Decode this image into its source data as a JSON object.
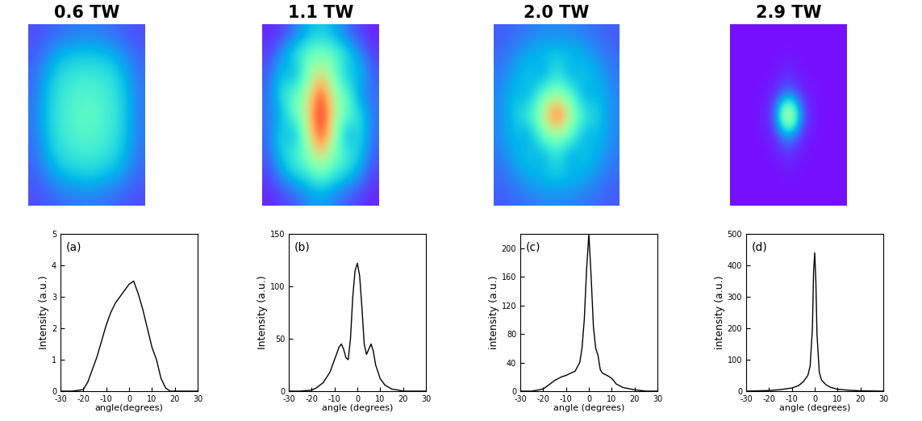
{
  "chart_data": [
    {
      "type": "heatmap",
      "title": "0.6 TW",
      "tick_labels": false,
      "value_range": [
        0,
        1
      ],
      "cells": [
        [
          0.1,
          0.12,
          0.14,
          0.16,
          0.17,
          0.16,
          0.14,
          0.12,
          0.1
        ],
        [
          0.12,
          0.18,
          0.25,
          0.28,
          0.29,
          0.28,
          0.25,
          0.18,
          0.13
        ],
        [
          0.14,
          0.25,
          0.33,
          0.36,
          0.37,
          0.36,
          0.33,
          0.25,
          0.15
        ],
        [
          0.15,
          0.28,
          0.36,
          0.4,
          0.42,
          0.4,
          0.36,
          0.28,
          0.16
        ],
        [
          0.16,
          0.29,
          0.37,
          0.42,
          0.44,
          0.42,
          0.37,
          0.29,
          0.16
        ],
        [
          0.15,
          0.28,
          0.36,
          0.4,
          0.42,
          0.4,
          0.36,
          0.28,
          0.16
        ],
        [
          0.14,
          0.25,
          0.33,
          0.36,
          0.38,
          0.36,
          0.33,
          0.25,
          0.15
        ],
        [
          0.12,
          0.18,
          0.25,
          0.28,
          0.3,
          0.28,
          0.25,
          0.19,
          0.13
        ],
        [
          0.1,
          0.12,
          0.14,
          0.16,
          0.17,
          0.16,
          0.14,
          0.12,
          0.1
        ]
      ]
    },
    {
      "type": "heatmap",
      "title": "1.1 TW",
      "tick_labels": false,
      "value_range": [
        0,
        1
      ],
      "cells": [
        [
          0.05,
          0.08,
          0.15,
          0.25,
          0.3,
          0.25,
          0.15,
          0.08,
          0.05
        ],
        [
          0.08,
          0.2,
          0.35,
          0.45,
          0.5,
          0.45,
          0.35,
          0.2,
          0.08
        ],
        [
          0.12,
          0.3,
          0.2,
          0.5,
          0.7,
          0.5,
          0.25,
          0.3,
          0.12
        ],
        [
          0.14,
          0.35,
          0.45,
          0.6,
          0.95,
          0.6,
          0.45,
          0.2,
          0.14
        ],
        [
          0.15,
          0.25,
          0.45,
          0.65,
          1.0,
          0.65,
          0.45,
          0.35,
          0.15
        ],
        [
          0.14,
          0.35,
          0.2,
          0.6,
          0.95,
          0.6,
          0.2,
          0.35,
          0.14
        ],
        [
          0.12,
          0.3,
          0.4,
          0.5,
          0.7,
          0.5,
          0.4,
          0.3,
          0.12
        ],
        [
          0.08,
          0.2,
          0.3,
          0.35,
          0.45,
          0.35,
          0.3,
          0.2,
          0.08
        ],
        [
          0.05,
          0.08,
          0.12,
          0.18,
          0.22,
          0.18,
          0.12,
          0.08,
          0.05
        ]
      ]
    },
    {
      "type": "heatmap",
      "title": "2.0 TW",
      "tick_labels": false,
      "value_range": [
        0,
        1
      ],
      "cells": [
        [
          0.12,
          0.14,
          0.16,
          0.18,
          0.18,
          0.18,
          0.16,
          0.14,
          0.12
        ],
        [
          0.14,
          0.18,
          0.24,
          0.28,
          0.3,
          0.28,
          0.24,
          0.18,
          0.14
        ],
        [
          0.16,
          0.24,
          0.3,
          0.2,
          0.36,
          0.22,
          0.3,
          0.24,
          0.16
        ],
        [
          0.18,
          0.28,
          0.22,
          0.45,
          0.55,
          0.45,
          0.2,
          0.28,
          0.18
        ],
        [
          0.18,
          0.3,
          0.38,
          0.6,
          1.0,
          0.6,
          0.38,
          0.3,
          0.18
        ],
        [
          0.18,
          0.28,
          0.2,
          0.45,
          0.55,
          0.45,
          0.22,
          0.28,
          0.18
        ],
        [
          0.16,
          0.24,
          0.3,
          0.22,
          0.36,
          0.2,
          0.3,
          0.24,
          0.16
        ],
        [
          0.14,
          0.18,
          0.24,
          0.28,
          0.3,
          0.28,
          0.24,
          0.18,
          0.14
        ],
        [
          0.12,
          0.14,
          0.16,
          0.18,
          0.18,
          0.18,
          0.16,
          0.14,
          0.12
        ]
      ]
    },
    {
      "type": "heatmap",
      "title": "2.9 TW",
      "tick_labels": false,
      "value_range": [
        0,
        1
      ],
      "cells": [
        [
          0.02,
          0.02,
          0.02,
          0.02,
          0.02,
          0.02,
          0.02,
          0.02,
          0.02
        ],
        [
          0.02,
          0.02,
          0.02,
          0.02,
          0.03,
          0.02,
          0.02,
          0.02,
          0.02
        ],
        [
          0.02,
          0.02,
          0.02,
          0.03,
          0.06,
          0.03,
          0.02,
          0.02,
          0.02
        ],
        [
          0.02,
          0.02,
          0.03,
          0.05,
          0.15,
          0.05,
          0.03,
          0.02,
          0.02
        ],
        [
          0.02,
          0.02,
          0.03,
          0.1,
          1.0,
          0.12,
          0.03,
          0.02,
          0.02
        ],
        [
          0.02,
          0.02,
          0.03,
          0.05,
          0.2,
          0.05,
          0.03,
          0.02,
          0.02
        ],
        [
          0.02,
          0.02,
          0.02,
          0.03,
          0.06,
          0.03,
          0.02,
          0.02,
          0.02
        ],
        [
          0.02,
          0.02,
          0.02,
          0.02,
          0.03,
          0.02,
          0.02,
          0.02,
          0.02
        ],
        [
          0.02,
          0.02,
          0.02,
          0.02,
          0.02,
          0.02,
          0.02,
          0.02,
          0.02
        ]
      ]
    },
    {
      "type": "line",
      "annotations": [
        "(a)"
      ],
      "x_label": "angle(degrees)",
      "y_label": "Intensity (a.u.)",
      "color": "#000000",
      "xlim": [
        -30,
        30
      ],
      "xticks": [
        -30,
        -20,
        -10,
        0,
        10,
        20,
        30
      ],
      "ylim": [
        0,
        5
      ],
      "yticks": [
        0,
        1,
        2,
        3,
        4,
        5
      ],
      "x": [
        -30,
        -25,
        -20,
        -18,
        -16,
        -14,
        -12,
        -10,
        -8,
        -6,
        -4,
        -2,
        0,
        2,
        4,
        6,
        8,
        10,
        12,
        14,
        16,
        18,
        20,
        25,
        30
      ],
      "values": [
        0,
        0,
        0.05,
        0.3,
        0.7,
        1.1,
        1.6,
        2.1,
        2.5,
        2.8,
        3.0,
        3.2,
        3.4,
        3.5,
        3.1,
        2.6,
        2.0,
        1.4,
        1.0,
        0.4,
        0.1,
        0,
        0,
        0,
        0
      ]
    },
    {
      "type": "line",
      "annotations": [
        "(b)"
      ],
      "x_label": "angle (degrees)",
      "y_label": "Intensity (a.u.)",
      "color": "#000000",
      "xlim": [
        -30,
        30
      ],
      "xticks": [
        -30,
        -20,
        -10,
        0,
        10,
        20,
        30
      ],
      "ylim": [
        0,
        150
      ],
      "yticks": [
        0,
        50,
        100,
        150
      ],
      "x": [
        -30,
        -25,
        -20,
        -18,
        -15,
        -12,
        -10,
        -8,
        -7,
        -6,
        -5,
        -4,
        -3,
        -2,
        -1,
        0,
        1,
        2,
        3,
        4,
        5,
        6,
        7,
        8,
        10,
        12,
        15,
        18,
        20,
        25,
        30
      ],
      "values": [
        0,
        0,
        1,
        3,
        8,
        18,
        30,
        42,
        45,
        40,
        32,
        30,
        50,
        90,
        115,
        122,
        110,
        80,
        45,
        35,
        40,
        45,
        38,
        25,
        12,
        6,
        2,
        1,
        0,
        0,
        0
      ]
    },
    {
      "type": "line",
      "annotations": [
        "(c)"
      ],
      "x_label": "angle (degrees)",
      "y_label": "intensity (a.u.)",
      "color": "#000000",
      "xlim": [
        -30,
        30
      ],
      "xticks": [
        -30,
        -20,
        -10,
        0,
        10,
        20,
        30
      ],
      "ylim": [
        0,
        220
      ],
      "yticks": [
        0,
        40,
        80,
        120,
        160,
        200
      ],
      "x": [
        -30,
        -25,
        -20,
        -17,
        -15,
        -12,
        -10,
        -8,
        -6,
        -4,
        -3,
        -2,
        -1,
        0,
        1,
        2,
        3,
        4,
        5,
        6,
        8,
        10,
        12,
        15,
        20,
        25,
        30
      ],
      "values": [
        0,
        0,
        3,
        10,
        15,
        20,
        22,
        25,
        28,
        40,
        60,
        100,
        170,
        220,
        160,
        90,
        60,
        50,
        30,
        25,
        22,
        18,
        10,
        5,
        2,
        0,
        0
      ]
    },
    {
      "type": "line",
      "annotations": [
        "(d)"
      ],
      "x_label": "angle (degrees)",
      "y_label": "intensity (a.u.)",
      "color": "#000000",
      "xlim": [
        -30,
        30
      ],
      "xticks": [
        -30,
        -20,
        -10,
        0,
        10,
        20,
        30
      ],
      "ylim": [
        0,
        500
      ],
      "yticks": [
        0,
        100,
        200,
        300,
        400,
        500
      ],
      "x": [
        -30,
        -20,
        -15,
        -10,
        -7,
        -5,
        -3,
        -2,
        -1,
        -0.5,
        0,
        0.5,
        1,
        2,
        3,
        5,
        7,
        10,
        15,
        20,
        30
      ],
      "values": [
        0,
        2,
        5,
        10,
        18,
        30,
        50,
        80,
        200,
        380,
        440,
        350,
        180,
        60,
        35,
        20,
        12,
        6,
        3,
        1,
        0
      ]
    }
  ]
}
